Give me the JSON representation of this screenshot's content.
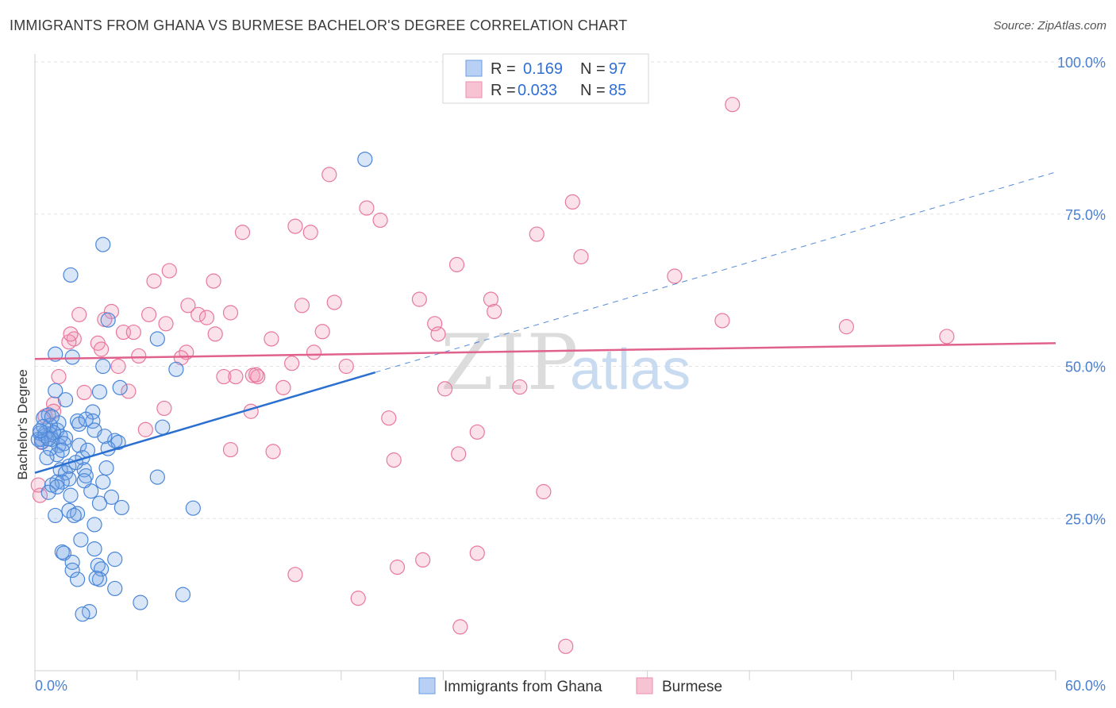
{
  "title": "IMMIGRANTS FROM GHANA VS BURMESE BACHELOR'S DEGREE CORRELATION CHART",
  "source": "Source: ZipAtlas.com",
  "watermark": {
    "left": "ZIP",
    "right": "atlas"
  },
  "chart_data": {
    "type": "scatter",
    "xlabel": "",
    "ylabel": "Bachelor's Degree",
    "xlim": [
      0,
      60
    ],
    "ylim": [
      0,
      100
    ],
    "x_tick_labels": [
      "0.0%",
      "60.0%"
    ],
    "y_ticks": [
      25,
      50,
      75,
      100
    ],
    "y_tick_labels": [
      "25.0%",
      "50.0%",
      "75.0%",
      "100.0%"
    ],
    "grid": true,
    "legend_position": "top-center",
    "colors": {
      "ghana": "#4a86d8",
      "burmese": "#e8789c",
      "ghana_line": "#2b6fd0",
      "burmese_line": "#e0628c"
    },
    "stats": [
      {
        "r_label": "R =",
        "r_value": "0.169",
        "n_label": "N =",
        "n_value": "97"
      },
      {
        "r_label": "R =",
        "r_value": "0.033",
        "n_label": "N =",
        "n_value": "85"
      }
    ],
    "series": [
      {
        "name": "Immigrants from Ghana",
        "trend": {
          "x0": 0,
          "y0": 32.5,
          "x1": 20,
          "y1": 49,
          "dash_to_x": 60,
          "dash_to_y": 81.9
        },
        "points": [
          [
            19.4,
            84
          ],
          [
            4.0,
            70
          ],
          [
            2.1,
            65
          ],
          [
            4.3,
            57.6
          ],
          [
            7.2,
            54.5
          ],
          [
            2.2,
            51.5
          ],
          [
            1.2,
            52
          ],
          [
            4.0,
            50
          ],
          [
            8.3,
            49.5
          ],
          [
            5.0,
            46.5
          ],
          [
            1.2,
            46
          ],
          [
            3.8,
            45.8
          ],
          [
            1.8,
            44.5
          ],
          [
            0.8,
            42
          ],
          [
            0.5,
            41.5
          ],
          [
            3.4,
            42.5
          ],
          [
            2.5,
            41
          ],
          [
            2.6,
            40.5
          ],
          [
            3.4,
            41
          ],
          [
            7.5,
            40
          ],
          [
            1.3,
            39.5
          ],
          [
            0.3,
            39
          ],
          [
            0.6,
            39
          ],
          [
            0.9,
            38.8
          ],
          [
            1.5,
            38.5
          ],
          [
            0.4,
            38
          ],
          [
            0.2,
            38
          ],
          [
            1.0,
            38
          ],
          [
            4.7,
            37.8
          ],
          [
            3.5,
            39.5
          ],
          [
            4.1,
            38.5
          ],
          [
            4.9,
            37.5
          ],
          [
            2.6,
            37
          ],
          [
            1.4,
            37
          ],
          [
            0.9,
            36.5
          ],
          [
            4.3,
            36.5
          ],
          [
            1.3,
            35.5
          ],
          [
            2.8,
            35
          ],
          [
            0.7,
            35
          ],
          [
            1.5,
            33
          ],
          [
            2.9,
            33
          ],
          [
            1.8,
            32.5
          ],
          [
            3.0,
            32
          ],
          [
            2.0,
            31.5
          ],
          [
            1.3,
            31
          ],
          [
            1.6,
            31
          ],
          [
            4.0,
            31
          ],
          [
            7.2,
            31.8
          ],
          [
            1.0,
            30.5
          ],
          [
            3.3,
            29.5
          ],
          [
            0.8,
            29.3
          ],
          [
            2.1,
            28.8
          ],
          [
            4.5,
            28.5
          ],
          [
            3.8,
            27.5
          ],
          [
            5.1,
            26.8
          ],
          [
            9.3,
            26.7
          ],
          [
            2.0,
            26.3
          ],
          [
            2.5,
            25.8
          ],
          [
            1.2,
            25.5
          ],
          [
            2.3,
            25.5
          ],
          [
            3.5,
            24
          ],
          [
            2.7,
            21.5
          ],
          [
            1.6,
            19.5
          ],
          [
            3.5,
            20
          ],
          [
            1.7,
            19.3
          ],
          [
            4.7,
            18.3
          ],
          [
            2.2,
            17.8
          ],
          [
            3.7,
            17.3
          ],
          [
            3.9,
            16.7
          ],
          [
            2.2,
            16.5
          ],
          [
            2.5,
            15
          ],
          [
            3.8,
            15
          ],
          [
            3.6,
            15.2
          ],
          [
            4.7,
            13.5
          ],
          [
            8.7,
            12.5
          ],
          [
            6.2,
            11.2
          ],
          [
            3.2,
            9.7
          ],
          [
            2.8,
            9.3
          ],
          [
            1.4,
            40.7
          ],
          [
            1.8,
            38.2
          ],
          [
            0.9,
            40.3
          ],
          [
            3.0,
            41.3
          ],
          [
            0.6,
            38.6
          ],
          [
            1.1,
            39.1
          ],
          [
            0.4,
            37.6
          ],
          [
            2.0,
            33.6
          ],
          [
            4.2,
            33.3
          ],
          [
            1.3,
            30.2
          ],
          [
            2.4,
            34.2
          ],
          [
            3.1,
            36.2
          ],
          [
            0.5,
            40.1
          ],
          [
            1.7,
            37.3
          ],
          [
            0.8,
            38.1
          ],
          [
            1.6,
            36.2
          ],
          [
            2.9,
            31.2
          ],
          [
            0.3,
            39.4
          ],
          [
            1.0,
            41.7
          ]
        ]
      },
      {
        "name": "Burmese",
        "trend": {
          "x0": 0,
          "y0": 51.2,
          "x1": 60,
          "y1": 53.8
        },
        "points": [
          [
            41,
            93
          ],
          [
            17.3,
            81.5
          ],
          [
            19.5,
            76
          ],
          [
            20.3,
            74
          ],
          [
            31.6,
            77
          ],
          [
            15.3,
            73
          ],
          [
            12.2,
            72
          ],
          [
            16.2,
            72
          ],
          [
            29.5,
            71.7
          ],
          [
            32.1,
            68
          ],
          [
            24.8,
            66.7
          ],
          [
            7.9,
            65.7
          ],
          [
            7.0,
            64
          ],
          [
            10.5,
            64
          ],
          [
            37.6,
            64.8
          ],
          [
            22.6,
            61
          ],
          [
            26.8,
            61
          ],
          [
            15.7,
            60
          ],
          [
            17.6,
            60.5
          ],
          [
            9.0,
            60
          ],
          [
            4.5,
            59
          ],
          [
            2.6,
            58.5
          ],
          [
            6.7,
            58.5
          ],
          [
            9.6,
            58.5
          ],
          [
            11.5,
            58.8
          ],
          [
            10.1,
            58
          ],
          [
            27.0,
            59
          ],
          [
            7.7,
            57
          ],
          [
            4.1,
            57.7
          ],
          [
            23.5,
            57
          ],
          [
            40.4,
            57.5
          ],
          [
            47.7,
            56.5
          ],
          [
            5.2,
            55.6
          ],
          [
            5.8,
            55.6
          ],
          [
            10.6,
            55.3
          ],
          [
            16.9,
            55.7
          ],
          [
            2.3,
            54.5
          ],
          [
            2.0,
            54
          ],
          [
            13.9,
            54.5
          ],
          [
            3.7,
            53.8
          ],
          [
            23.7,
            55.3
          ],
          [
            53.6,
            54.9
          ],
          [
            3.9,
            52.8
          ],
          [
            8.9,
            52.3
          ],
          [
            6.1,
            51.7
          ],
          [
            16.4,
            52.3
          ],
          [
            8.6,
            51.4
          ],
          [
            12.8,
            48.5
          ],
          [
            11.1,
            48.3
          ],
          [
            15.1,
            50.5
          ],
          [
            18.3,
            50
          ],
          [
            4.9,
            50
          ],
          [
            1.4,
            48.3
          ],
          [
            11.8,
            48.3
          ],
          [
            13.1,
            48.3
          ],
          [
            13.0,
            48.6
          ],
          [
            14.6,
            46.5
          ],
          [
            28.5,
            46.6
          ],
          [
            5.5,
            45.9
          ],
          [
            24.1,
            46.3
          ],
          [
            2.9,
            45.7
          ],
          [
            1.1,
            43.8
          ],
          [
            7.6,
            43.1
          ],
          [
            12.7,
            42.6
          ],
          [
            20.8,
            41.5
          ],
          [
            0.6,
            41.8
          ],
          [
            26.0,
            39.2
          ],
          [
            11.5,
            36.3
          ],
          [
            14.0,
            36
          ],
          [
            24.9,
            35.6
          ],
          [
            21.1,
            34.6
          ],
          [
            29.9,
            29.4
          ],
          [
            0.3,
            28.8
          ],
          [
            26.0,
            19.3
          ],
          [
            22.8,
            18.2
          ],
          [
            21.3,
            17
          ],
          [
            15.3,
            15.8
          ],
          [
            19.0,
            11.9
          ],
          [
            25.0,
            7.2
          ],
          [
            31.2,
            4
          ],
          [
            0.4,
            37.5
          ],
          [
            1.1,
            42.6
          ],
          [
            2.1,
            55.3
          ],
          [
            6.5,
            39.6
          ],
          [
            0.2,
            30.5
          ]
        ]
      }
    ]
  },
  "legend": {
    "items": [
      "Immigrants from Ghana",
      "Burmese"
    ]
  }
}
